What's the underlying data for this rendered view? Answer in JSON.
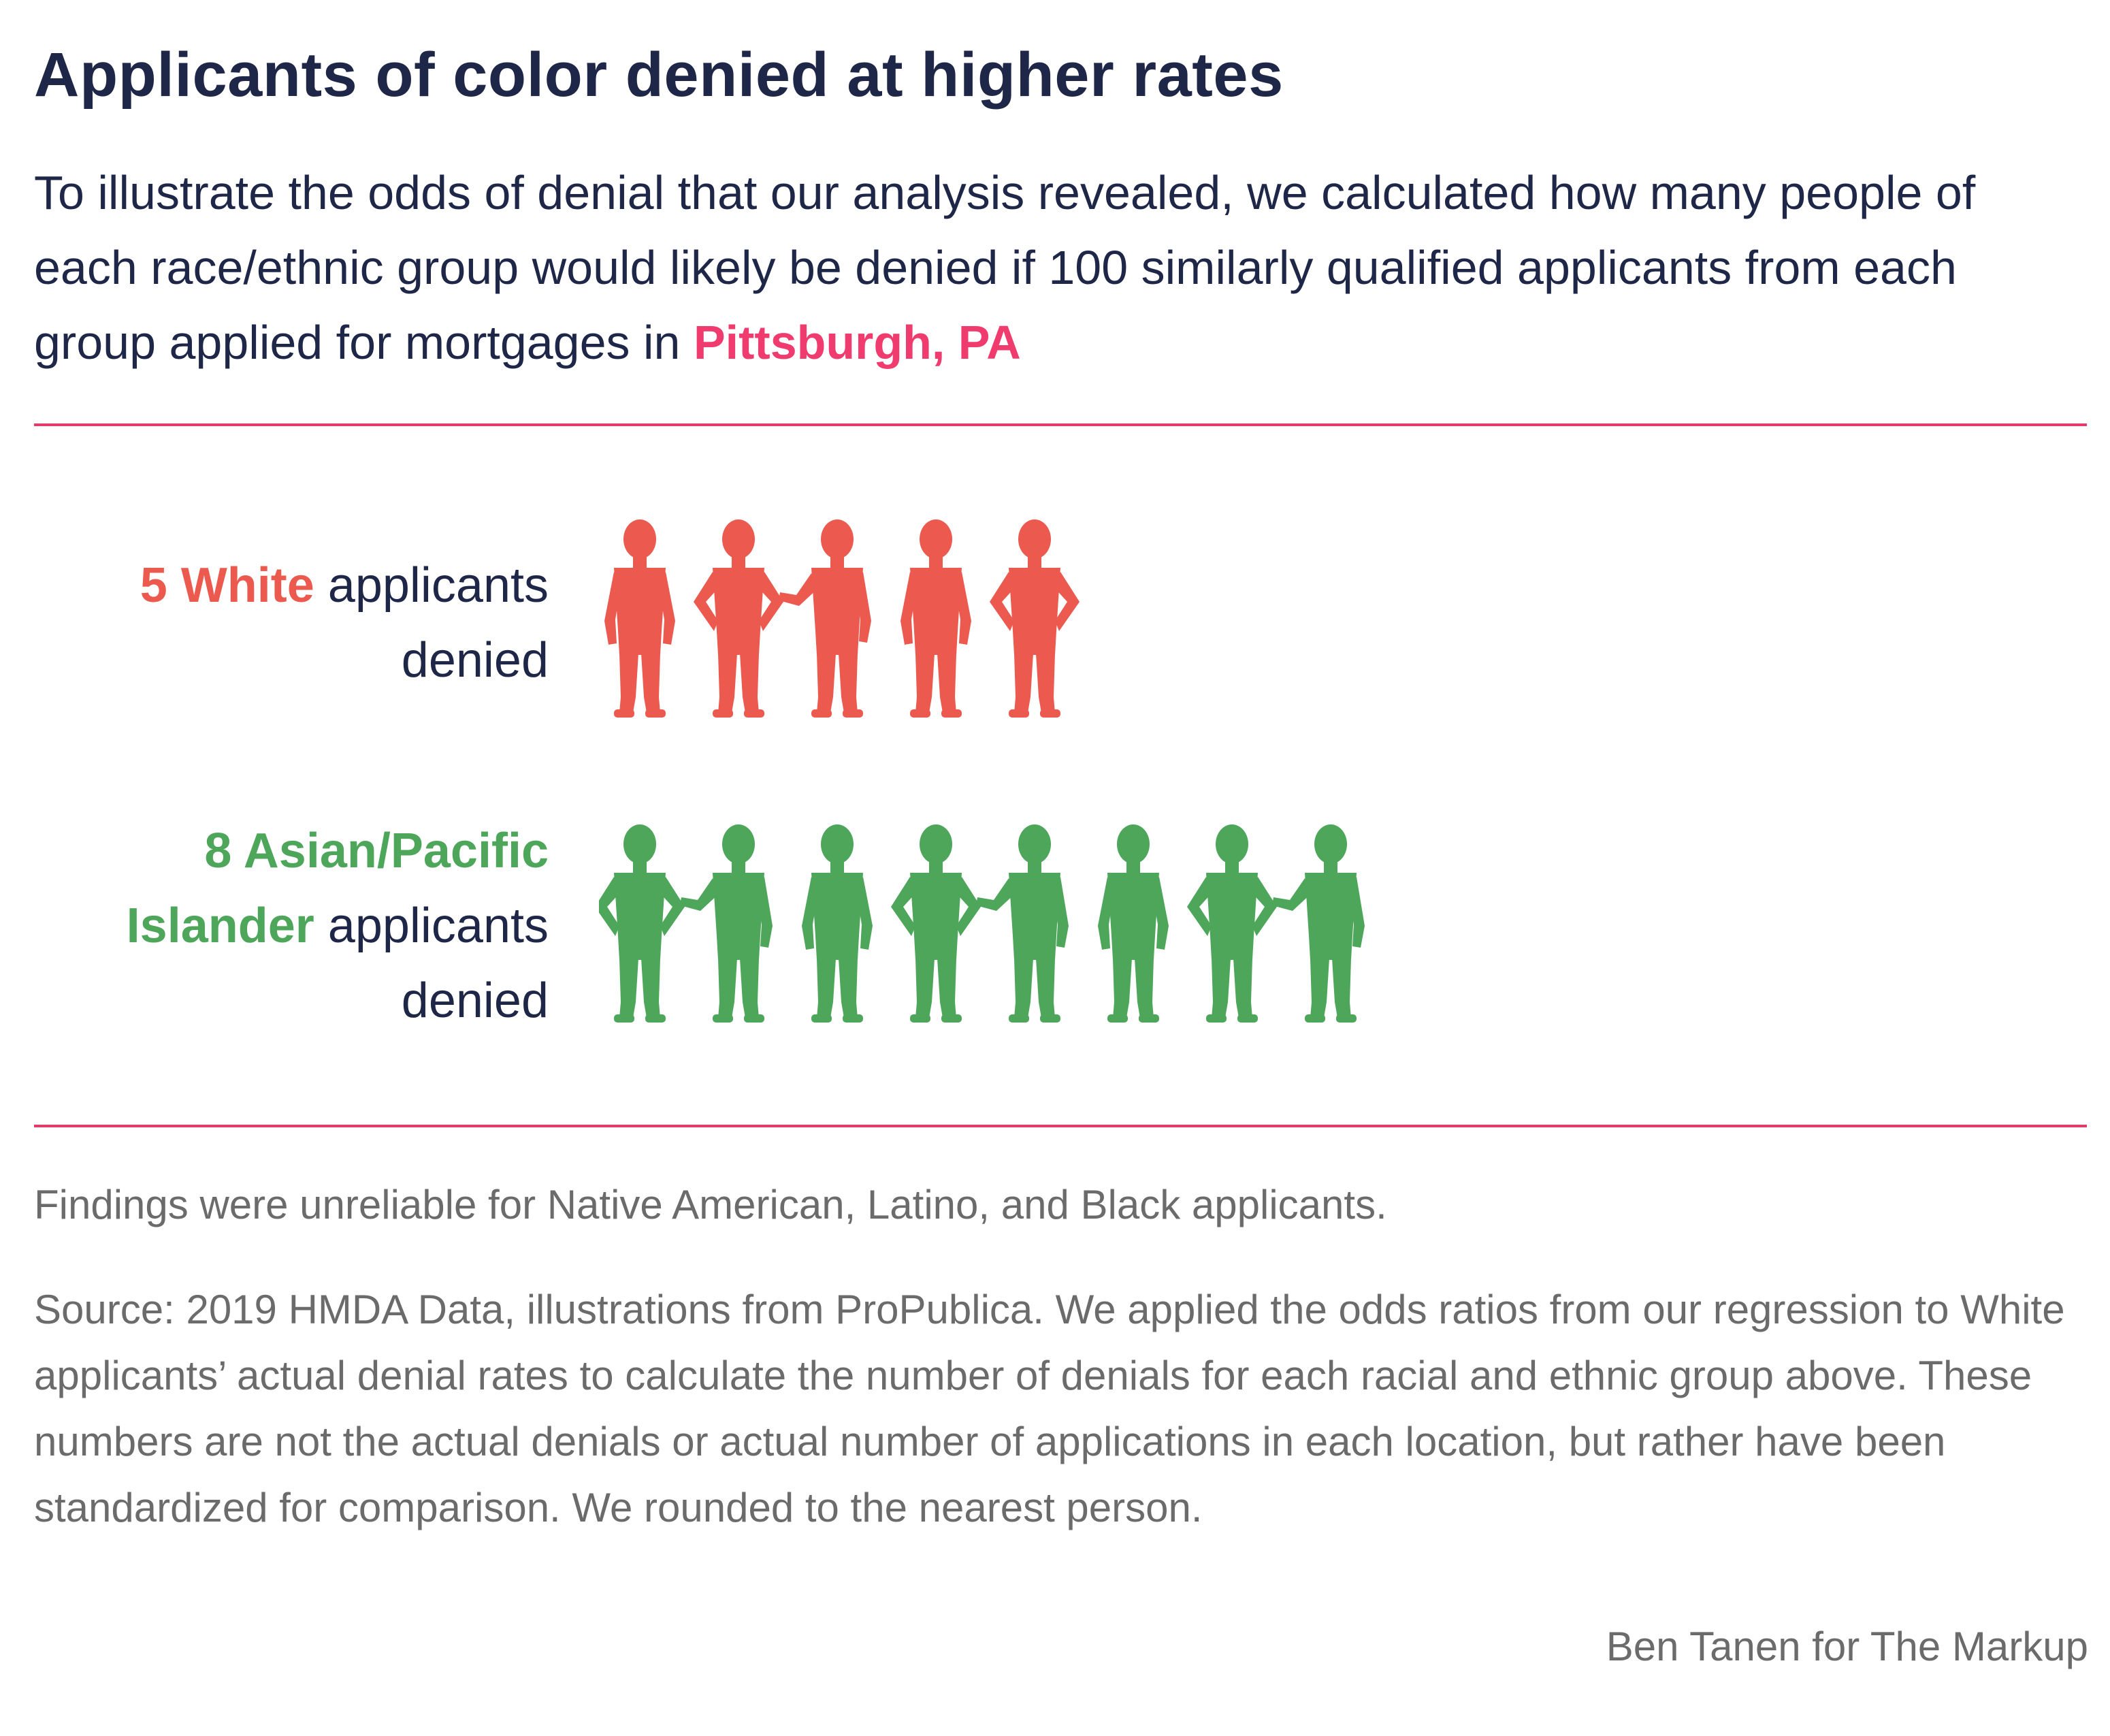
{
  "title": "Applicants of color denied at higher rates",
  "subtitle": {
    "text": "To illustrate the odds of denial that our analysis revealed, we calculated how many people of each race/ethnic group would likely be denied if 100 similarly qualified applicants from each group applied for mortgages in ",
    "location": "Pittsburgh, PA"
  },
  "rows": [
    {
      "group_label": "5 White",
      "rest_line1": " applicants",
      "rest_line2": "denied"
    },
    {
      "group_label_line1": "8 Asian/Pacific",
      "group_label_line2": "Islander",
      "rest_line2": " applicants",
      "rest_line3": "denied"
    }
  ],
  "chart_data": {
    "type": "pictogram",
    "unit": "applicants denied per 100 similarly qualified applicants",
    "location": "Pittsburgh, PA",
    "categories": [
      "White",
      "Asian/Pacific Islander"
    ],
    "values": [
      5,
      8
    ],
    "colors": [
      "#ec5a4f",
      "#4ea65b"
    ]
  },
  "notes": {
    "unreliable": "Findings were unreliable for Native American, Latino, and Black applicants.",
    "source": "Source: 2019 HMDA Data, illustrations from ProPublica. We applied the odds ratios from our regression to White applicants’ actual denial rates to calculate the number of denials for each racial and ethnic group above. These numbers are not the actual denials or actual number of applications in each location, but rather have been standardized for comparison. We rounded to the nearest person."
  },
  "credit": "Ben Tanen for The Markup",
  "colors": {
    "title": "#1f2749",
    "accent": "#ef3b6e",
    "rule": "#e23d6a",
    "white_group": "#ec5a4f",
    "api_group": "#4ea65b",
    "note": "#6b6b6b"
  }
}
